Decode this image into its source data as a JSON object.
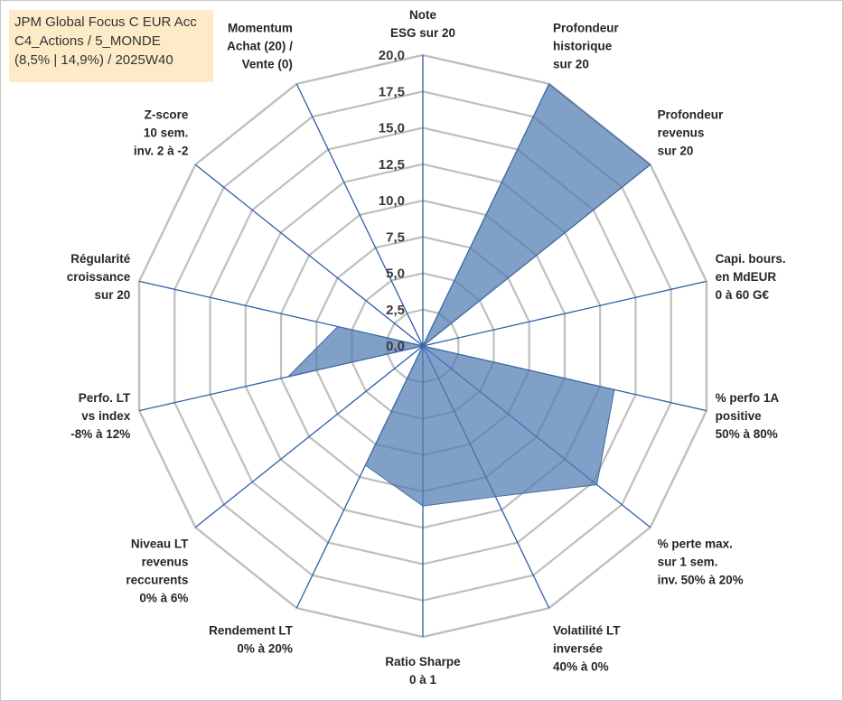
{
  "title_box": {
    "lines": [
      "JPM Global Focus C EUR Acc",
      "C4_Actions / 5_MONDE",
      "(8,5% | 14,9%) / 2025W40"
    ]
  },
  "chart_data": {
    "type": "radar",
    "r_range": [
      0,
      20
    ],
    "r_ticks": [
      "0,0",
      "2,5",
      "5,0",
      "7,5",
      "10,0",
      "12,5",
      "15,0",
      "17,5",
      "20,0"
    ],
    "grid": true,
    "colors": {
      "fill": "#4f7cb3",
      "fill_stroke": "#3d6aa0",
      "grid": "#bfbfbf",
      "spoke": "#2e5ea8"
    },
    "axes": [
      {
        "label": [
          "Note",
          "ESG sur 20"
        ],
        "value": 0
      },
      {
        "label": [
          "Profondeur",
          "historique",
          "sur 20"
        ],
        "value": 20
      },
      {
        "label": [
          "Profondeur",
          "revenus",
          "sur 20"
        ],
        "value": 20
      },
      {
        "label": [
          "Capi. bours.",
          "en MdEUR",
          "0 à 60 G€"
        ],
        "value": 0
      },
      {
        "label": [
          "% perfo 1A",
          "positive",
          "50% à 80%"
        ],
        "value": 13.5
      },
      {
        "label": [
          "% perte max.",
          "sur 1 sem.",
          "inv. 50% à 20%"
        ],
        "value": 15.3
      },
      {
        "label": [
          "Volatilité LT",
          "inversée",
          "40% à 0%"
        ],
        "value": 11.5
      },
      {
        "label": [
          "Ratio Sharpe",
          "0 à 1"
        ],
        "value": 11.0
      },
      {
        "label": [
          "Rendement LT",
          "0% à 20%"
        ],
        "value": 9.1
      },
      {
        "label": [
          "Niveau LT",
          "revenus",
          "reccurents",
          "0% à 6%"
        ],
        "value": 0
      },
      {
        "label": [
          "Perfo. LT",
          "vs index",
          "-8% à 12%"
        ],
        "value": 9.5
      },
      {
        "label": [
          "Régularité",
          "croissance",
          "sur 20"
        ],
        "value": 6.0
      },
      {
        "label": [
          "Z-score",
          "10 sem.",
          "inv. 2 à -2"
        ],
        "value": 0
      },
      {
        "label": [
          "Momentum",
          "Achat (20) /",
          "Vente (0)"
        ],
        "value": 0
      }
    ]
  }
}
